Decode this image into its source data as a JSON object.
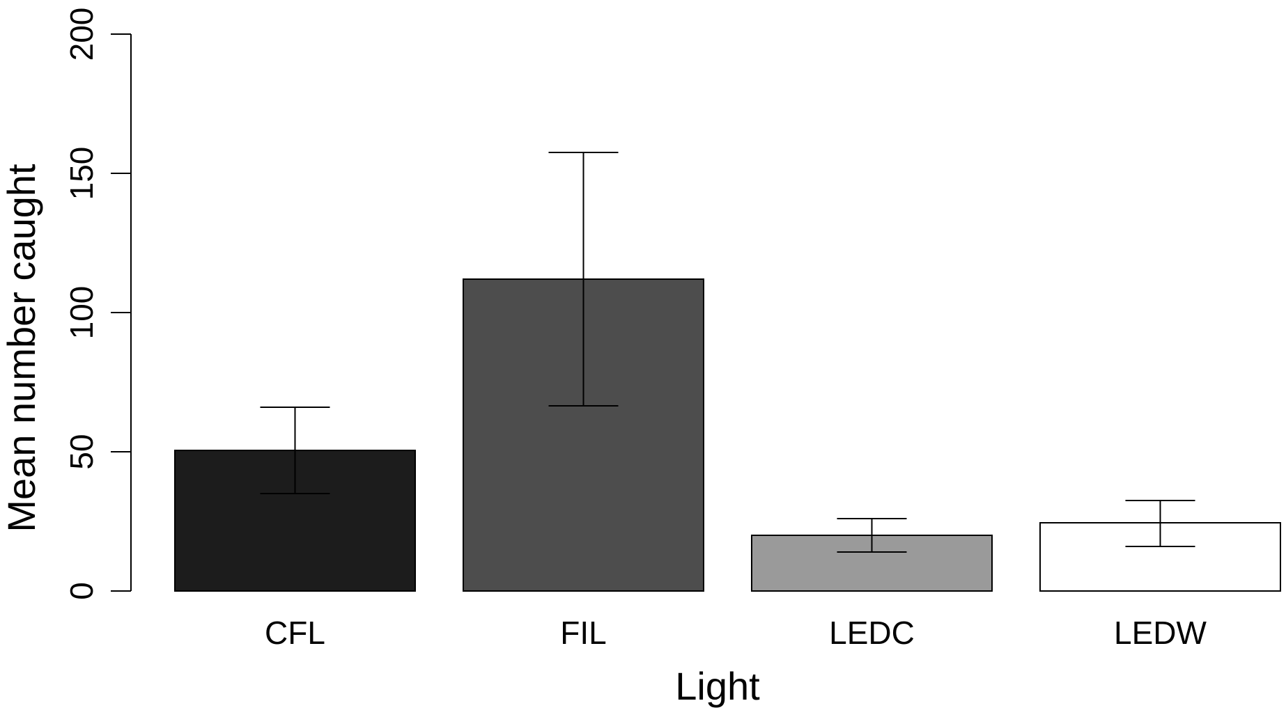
{
  "chart_data": {
    "type": "bar",
    "title": "",
    "xlabel": "Light",
    "ylabel": "Mean number caught",
    "categories": [
      "CFL",
      "FIL",
      "LEDC",
      "LEDW"
    ],
    "values": [
      50.5,
      112,
      20,
      24.5
    ],
    "error_bars": {
      "lower": [
        35,
        66.5,
        14,
        16
      ],
      "upper": [
        66,
        157.5,
        26,
        32.5
      ]
    },
    "bar_colors": [
      "#1c1c1c",
      "#4d4d4d",
      "#9a9a9a",
      "#ffffff"
    ],
    "ylim": [
      0,
      200
    ],
    "yticks": [
      0,
      50,
      100,
      150,
      200
    ],
    "ytick_labels": [
      "0",
      "50",
      "100",
      "150",
      "200"
    ],
    "grid": false,
    "legend": "none"
  }
}
